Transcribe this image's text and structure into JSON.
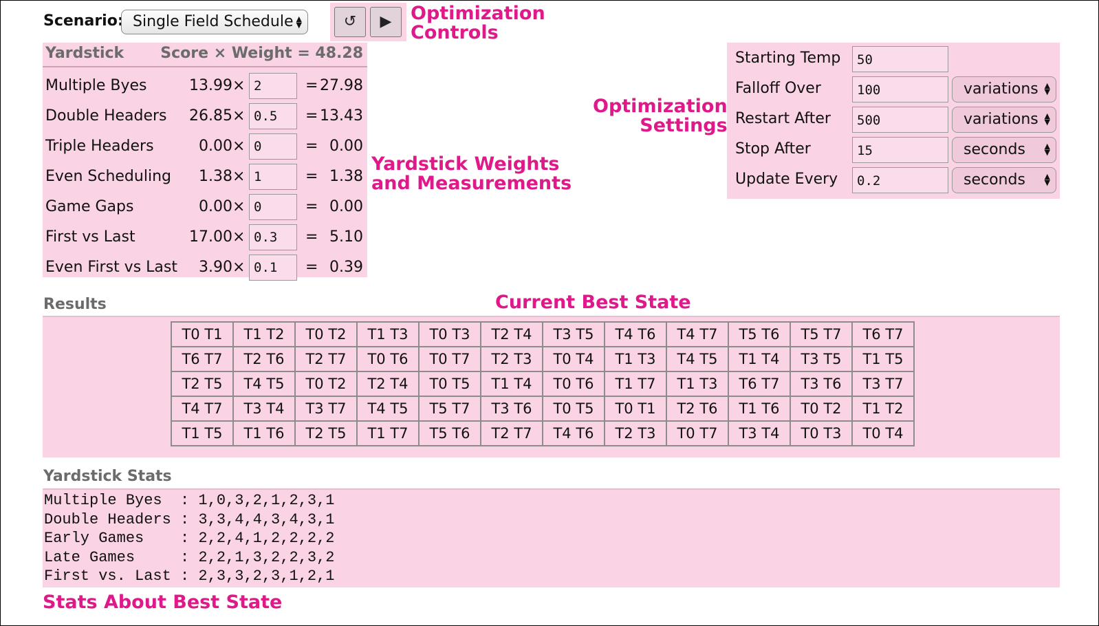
{
  "scenario": {
    "label": "Scenario:",
    "selected": "Single Field Schedule"
  },
  "controls": {
    "reset_icon": "↺",
    "play_icon": "▶"
  },
  "annotations": {
    "controls": "Optimization\nControls",
    "settings": "Optimization\nSettings",
    "weights": "Yardstick Weights\nand Measurements",
    "best_state": "Current Best State",
    "stats": "Stats About Best State"
  },
  "yardstick": {
    "header_name": "Yardstick",
    "header_formula": "Score × Weight = 48.28",
    "times": "×",
    "equals": "=",
    "rows": [
      {
        "name": "Multiple Byes",
        "score": "13.99",
        "weight": "2",
        "result": "27.98"
      },
      {
        "name": "Double Headers",
        "score": "26.85",
        "weight": "0.5",
        "result": "13.43"
      },
      {
        "name": "Triple Headers",
        "score": "0.00",
        "weight": "0",
        "result": "0.00"
      },
      {
        "name": "Even Scheduling",
        "score": "1.38",
        "weight": "1",
        "result": "1.38"
      },
      {
        "name": "Game Gaps",
        "score": "0.00",
        "weight": "0",
        "result": "0.00"
      },
      {
        "name": "First vs Last",
        "score": "17.00",
        "weight": "0.3",
        "result": "5.10"
      },
      {
        "name": "Even First vs Last",
        "score": "3.90",
        "weight": "0.1",
        "result": "0.39"
      }
    ]
  },
  "settings": {
    "rows": [
      {
        "name": "Starting Temp",
        "value": "50",
        "unit": ""
      },
      {
        "name": "Falloff Over",
        "value": "100",
        "unit": "variations"
      },
      {
        "name": "Restart After",
        "value": "500",
        "unit": "variations"
      },
      {
        "name": "Stop After",
        "value": "15",
        "unit": "seconds"
      },
      {
        "name": "Update Every",
        "value": "0.2",
        "unit": "seconds"
      }
    ]
  },
  "results": {
    "label": "Results",
    "rows": [
      [
        "T0 T1",
        "T1 T2",
        "T0 T2",
        "T1 T3",
        "T0 T3",
        "T2 T4",
        "T3 T5",
        "T4 T6",
        "T4 T7",
        "T5 T6",
        "T5 T7",
        "T6 T7"
      ],
      [
        "T6 T7",
        "T2 T6",
        "T2 T7",
        "T0 T6",
        "T0 T7",
        "T2 T3",
        "T0 T4",
        "T1 T3",
        "T4 T5",
        "T1 T4",
        "T3 T5",
        "T1 T5"
      ],
      [
        "T2 T5",
        "T4 T5",
        "T0 T2",
        "T2 T4",
        "T0 T5",
        "T1 T4",
        "T0 T6",
        "T1 T7",
        "T1 T3",
        "T6 T7",
        "T3 T6",
        "T3 T7"
      ],
      [
        "T4 T7",
        "T3 T4",
        "T3 T7",
        "T4 T5",
        "T5 T7",
        "T3 T6",
        "T0 T5",
        "T0 T1",
        "T2 T6",
        "T1 T6",
        "T0 T2",
        "T1 T2"
      ],
      [
        "T1 T5",
        "T1 T6",
        "T2 T5",
        "T1 T7",
        "T5 T6",
        "T2 T7",
        "T4 T6",
        "T2 T3",
        "T0 T7",
        "T3 T4",
        "T0 T3",
        "T0 T4"
      ]
    ]
  },
  "stats": {
    "label": "Yardstick Stats",
    "lines": [
      "Multiple Byes  : 1,0,3,2,1,2,3,1",
      "Double Headers : 3,3,4,4,3,4,3,1",
      "Early Games    : 2,2,4,1,2,2,2,2",
      "Late Games     : 2,2,1,3,2,2,3,2",
      "First vs. Last : 2,3,3,2,3,1,2,1"
    ]
  }
}
